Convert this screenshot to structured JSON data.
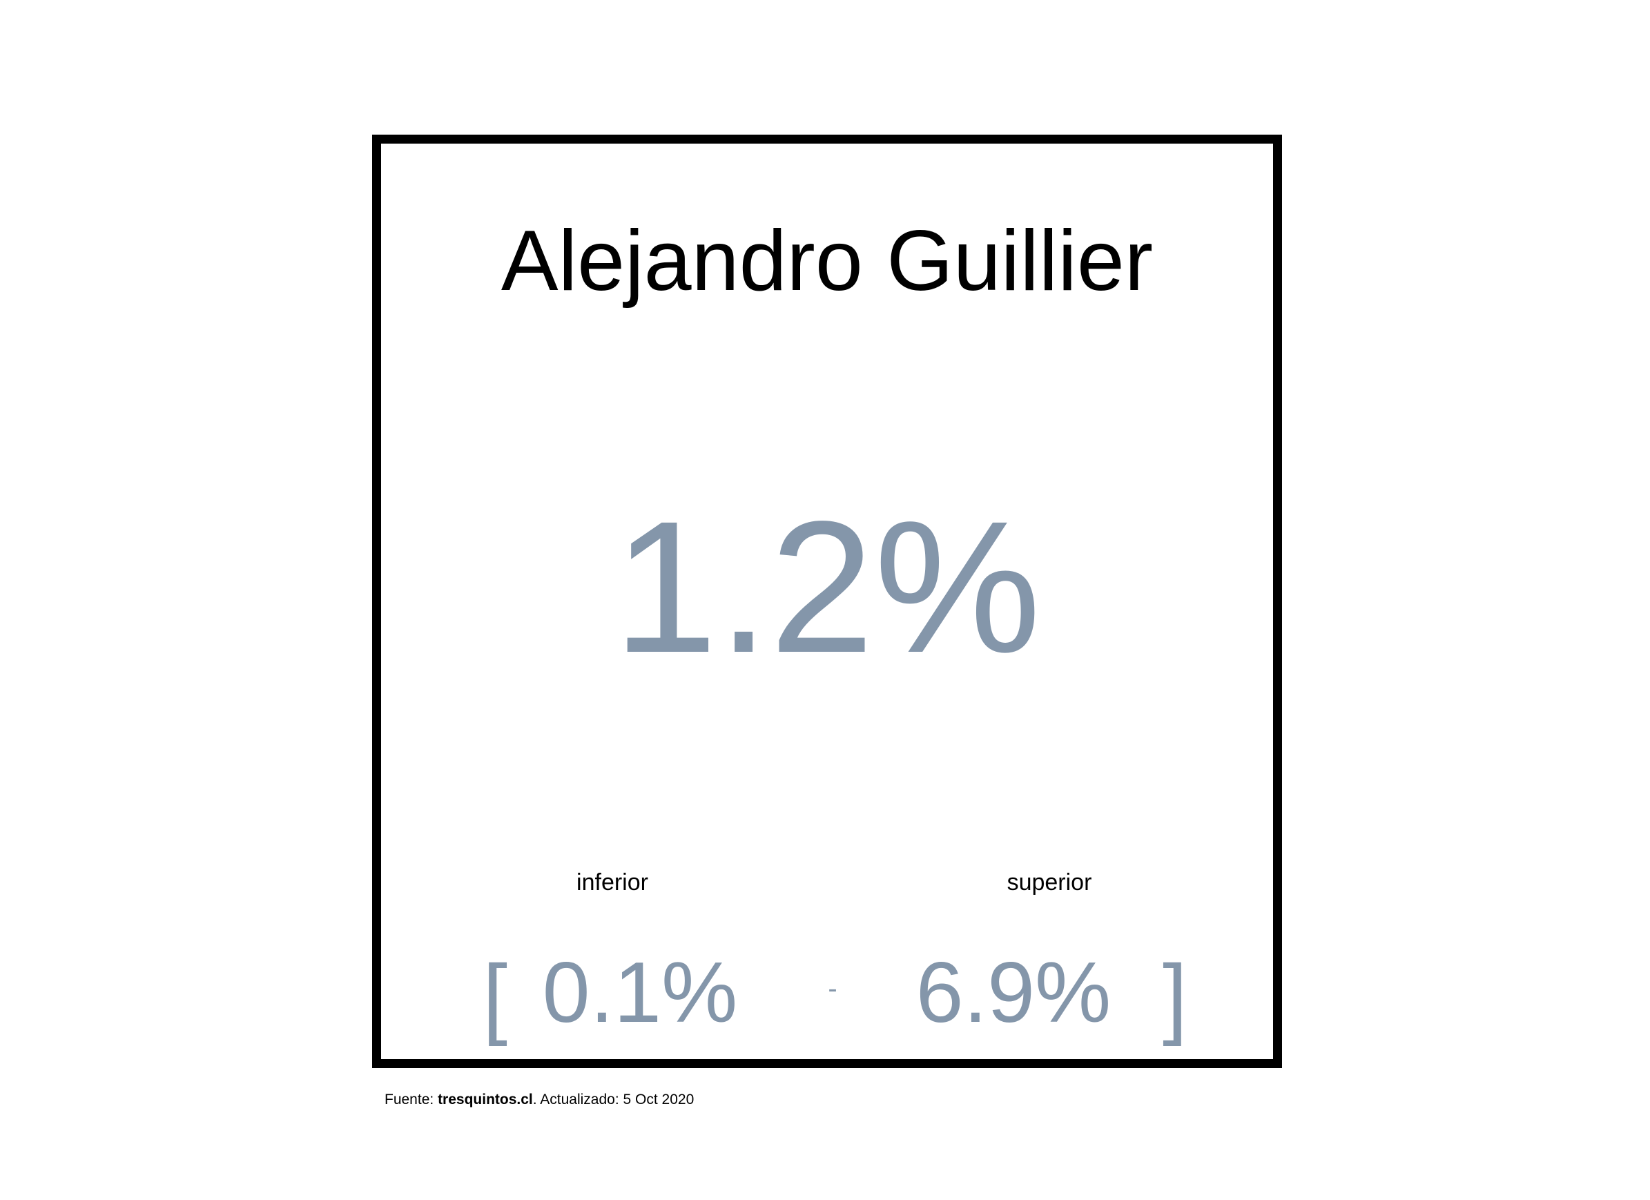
{
  "card": {
    "name": "Alejandro Guillier",
    "estimate": "1.2%",
    "interval": {
      "lower_label": "inferior",
      "upper_label": "superior",
      "open_bracket": "[",
      "lower_value": "0.1%",
      "separator": "-",
      "upper_value": "6.9%",
      "close_bracket": "]"
    }
  },
  "footer": {
    "prefix": "Fuente: ",
    "source": "tresquintos.cl",
    "suffix": ". Actualizado: 5 Oct 2020"
  },
  "colors": {
    "value_color": "#8496aa",
    "border_color": "#000000",
    "text_color": "#000000"
  }
}
